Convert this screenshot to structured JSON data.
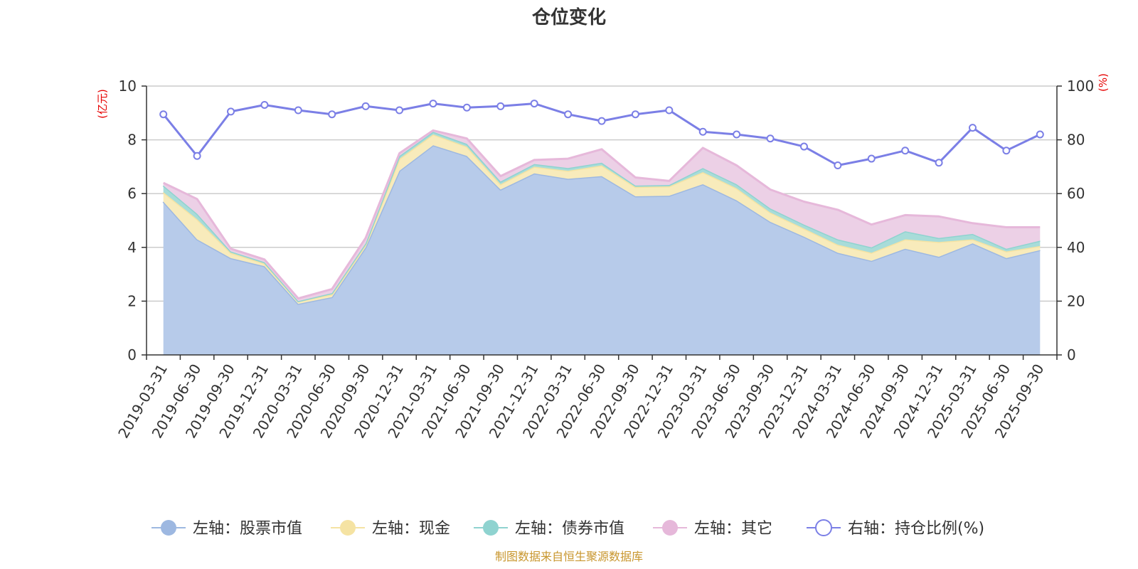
{
  "chart_data": {
    "type": "area",
    "title": "仓位变化",
    "left_axis_unit": "(亿元)",
    "right_axis_unit": "(%)",
    "left_ylim": [
      0,
      10
    ],
    "right_ylim": [
      0,
      100
    ],
    "left_ticks": [
      0,
      2,
      4,
      6,
      8,
      10
    ],
    "right_ticks": [
      0,
      20,
      40,
      60,
      80,
      100
    ],
    "categories": [
      "2019-03-31",
      "2019-06-30",
      "2019-09-30",
      "2019-12-31",
      "2020-03-31",
      "2020-06-30",
      "2020-09-30",
      "2020-12-31",
      "2021-03-31",
      "2021-06-30",
      "2021-09-30",
      "2021-12-31",
      "2022-03-31",
      "2022-06-30",
      "2022-09-30",
      "2022-12-31",
      "2023-03-31",
      "2023-06-30",
      "2023-09-30",
      "2023-12-31",
      "2024-03-31",
      "2024-06-30",
      "2024-09-30",
      "2024-12-31",
      "2025-03-31",
      "2025-06-30",
      "2025-09-30"
    ],
    "stacked_series": [
      {
        "name": "左轴：股票市值",
        "color": "#9db8e1",
        "fill": "#b7cbea",
        "values": [
          5.7,
          4.3,
          3.6,
          3.3,
          1.9,
          2.15,
          4.0,
          6.85,
          7.8,
          7.4,
          6.15,
          6.75,
          6.55,
          6.65,
          5.9,
          5.92,
          6.35,
          5.75,
          4.95,
          4.4,
          3.8,
          3.5,
          3.95,
          3.65,
          4.15,
          3.6,
          3.9
        ]
      },
      {
        "name": "左轴：现金",
        "color": "#f5e3a3",
        "fill": "#f8ebbb",
        "values": [
          0.35,
          0.75,
          0.2,
          0.1,
          0.1,
          0.1,
          0.1,
          0.45,
          0.4,
          0.35,
          0.2,
          0.25,
          0.3,
          0.4,
          0.35,
          0.35,
          0.45,
          0.45,
          0.35,
          0.3,
          0.3,
          0.3,
          0.35,
          0.55,
          0.15,
          0.25,
          0.15
        ]
      },
      {
        "name": "左轴：债券市值",
        "color": "#8fd3d0",
        "fill": "#a8dcd9",
        "values": [
          0.25,
          0.2,
          0.05,
          0.05,
          0.0,
          0.05,
          0.05,
          0.1,
          0.1,
          0.1,
          0.1,
          0.1,
          0.1,
          0.1,
          0.05,
          0.05,
          0.15,
          0.15,
          0.15,
          0.15,
          0.2,
          0.2,
          0.3,
          0.15,
          0.2,
          0.1,
          0.2
        ]
      },
      {
        "name": "左轴：其它",
        "color": "#e6b8da",
        "fill": "#ecd0e6",
        "values": [
          0.1,
          0.55,
          0.1,
          0.1,
          0.1,
          0.15,
          0.2,
          0.1,
          0.05,
          0.2,
          0.2,
          0.15,
          0.35,
          0.5,
          0.3,
          0.15,
          0.75,
          0.7,
          0.7,
          0.85,
          1.1,
          0.85,
          0.6,
          0.8,
          0.4,
          0.8,
          0.5
        ]
      }
    ],
    "line_series": {
      "name": "右轴：持仓比例(%)",
      "color": "#7b7fe6",
      "values": [
        89.5,
        74,
        90.5,
        93,
        91,
        89.5,
        92.5,
        91,
        93.5,
        92,
        92.5,
        93.5,
        89.5,
        87,
        89.5,
        91,
        83,
        82,
        80.5,
        77.5,
        70.5,
        73,
        76,
        71.5,
        84.5,
        76,
        82
      ]
    },
    "legend": [
      "左轴：股票市值",
      "左轴：现金",
      "左轴：债券市值",
      "左轴：其它",
      "右轴：持仓比例(%)"
    ],
    "source_note": "制图数据来自恒生聚源数据库",
    "grid": true
  }
}
